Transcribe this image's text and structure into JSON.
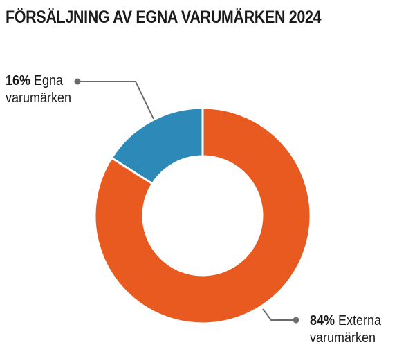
{
  "chart_data": {
    "type": "pie",
    "style": "donut",
    "title": "FÖRSÄLJNING AV EGNA VARUMÄRKEN 2024",
    "slices": [
      {
        "percent_label": "16%",
        "label_line1": "Egna",
        "label_line2": "varumärken",
        "value": 16,
        "color": "#2d8ab8"
      },
      {
        "percent_label": "84%",
        "label_line1": "Externa",
        "label_line2": "varumärken",
        "value": 84,
        "color": "#e85a20"
      }
    ],
    "leader_line_color": "#6b6b6b",
    "background_color": "#ffffff"
  }
}
